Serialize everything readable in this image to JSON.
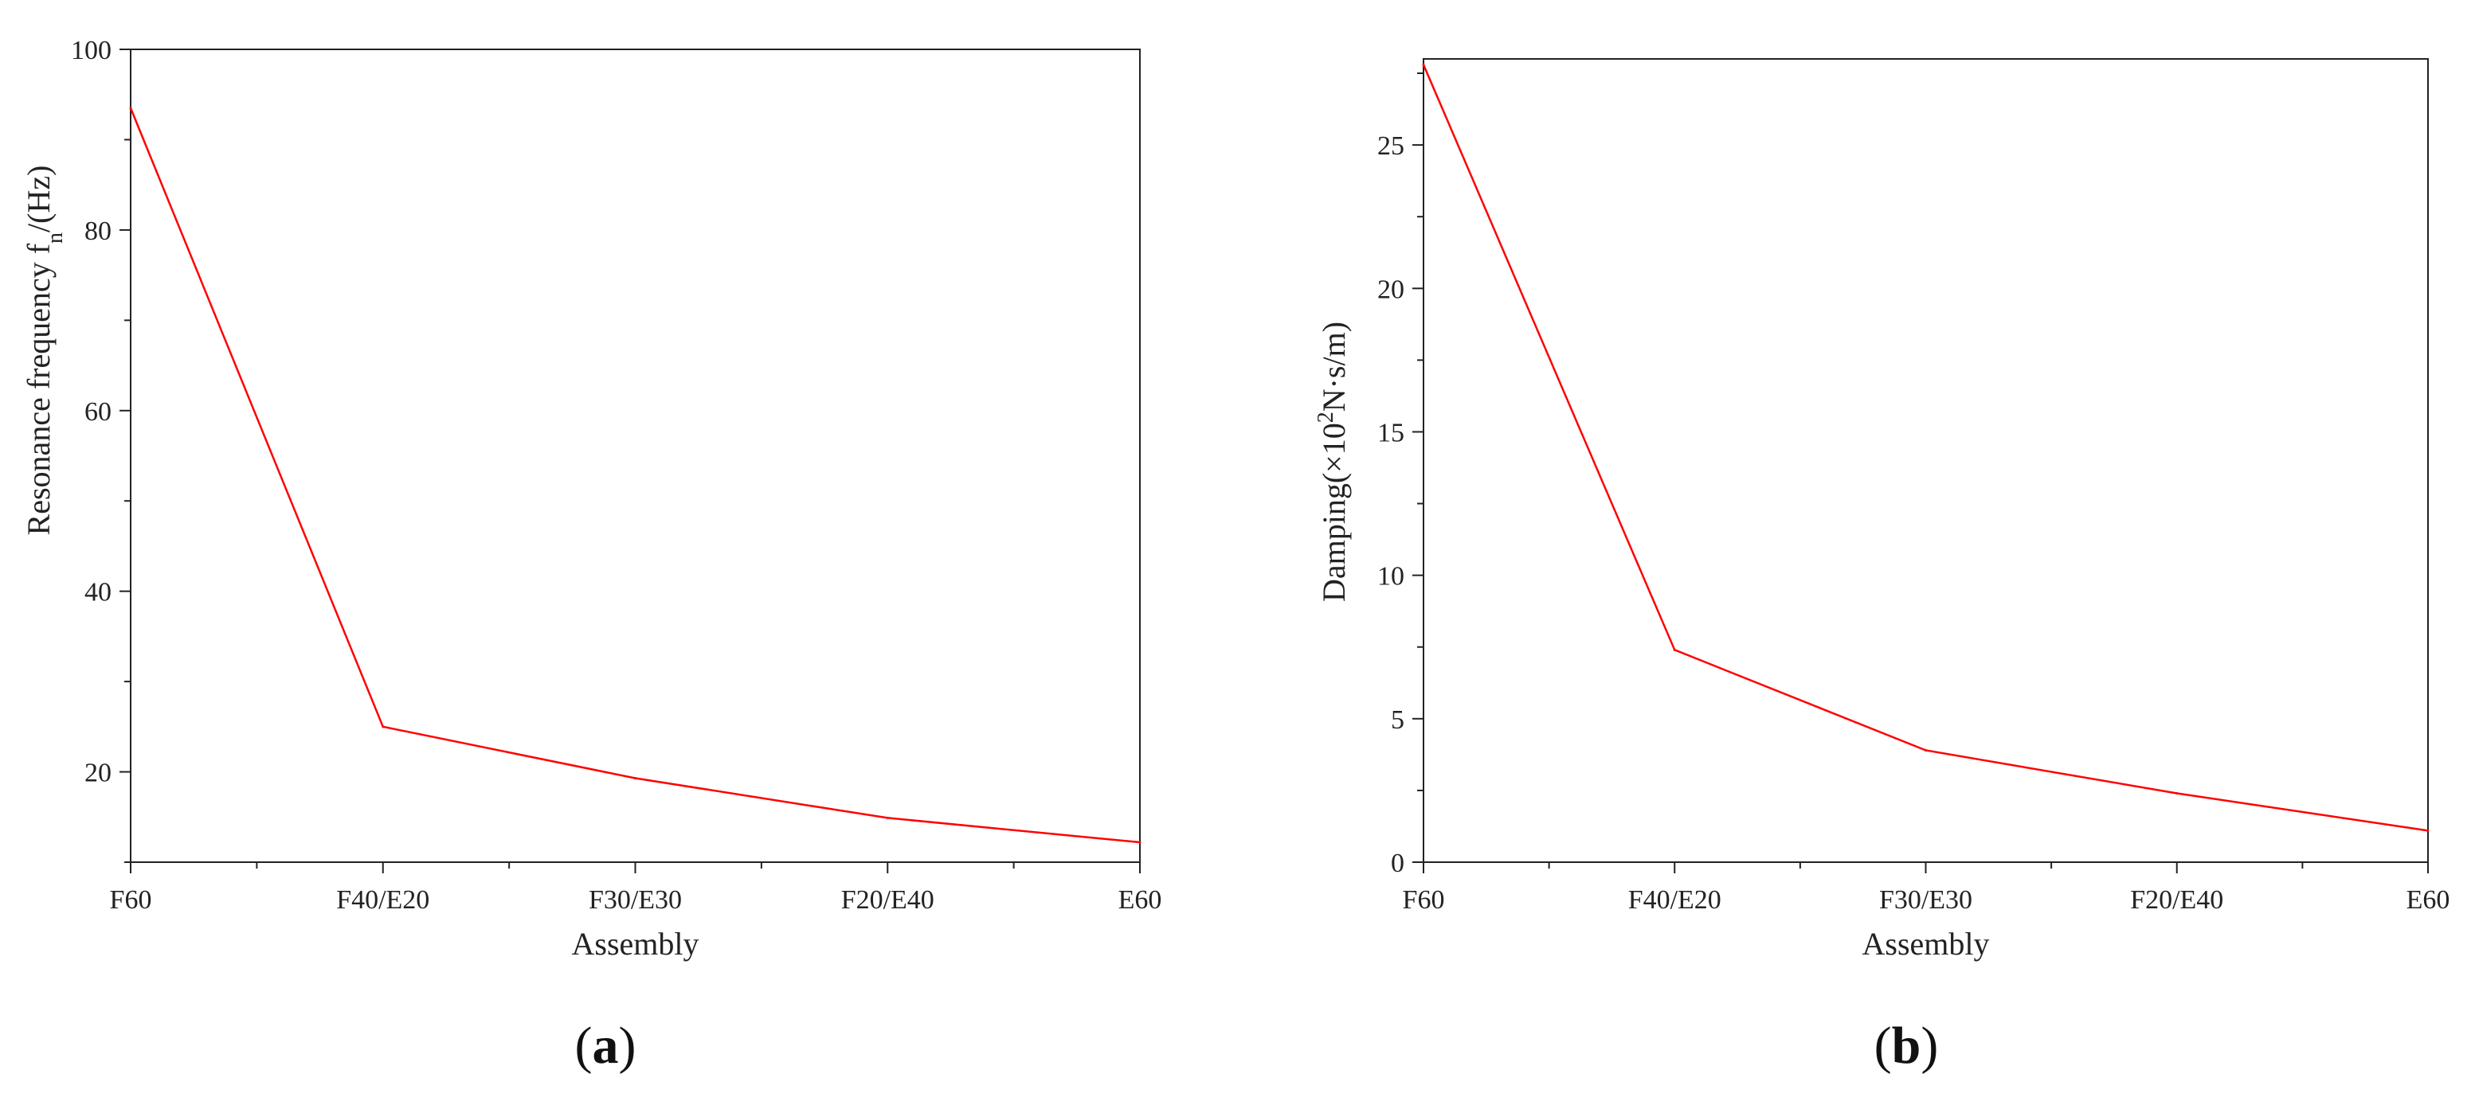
{
  "chart_data": [
    {
      "type": "line",
      "panel": "(a)",
      "panel_letter": "a",
      "categories": [
        "F60",
        "F40/E20",
        "F30/E30",
        "F20/E40",
        "E60"
      ],
      "series": [
        {
          "values": [
            93.5,
            25.0,
            19.3,
            14.9,
            12.2
          ],
          "color": "#ff0000"
        }
      ],
      "xlabel": "Assembly",
      "ylabel": "Resonance frequency f",
      "ylabel_sub": "n",
      "ylabel_tail": "/(Hz)",
      "ylim": [
        10,
        100
      ],
      "yticks": [
        20,
        40,
        60,
        80,
        100
      ],
      "grid": false
    },
    {
      "type": "line",
      "panel": "(b)",
      "panel_letter": "b",
      "categories": [
        "F60",
        "F40/E20",
        "F30/E30",
        "F20/E40",
        "E60"
      ],
      "series": [
        {
          "values": [
            27.8,
            7.4,
            3.9,
            2.4,
            1.1
          ],
          "color": "#ff0000"
        }
      ],
      "xlabel": "Assembly",
      "ylabel": "Damping(×10",
      "ylabel_sup": "2",
      "ylabel_tail": "N·s/m)",
      "ylim": [
        0,
        28
      ],
      "yticks": [
        0,
        5,
        10,
        15,
        20,
        25
      ],
      "grid": false
    }
  ]
}
